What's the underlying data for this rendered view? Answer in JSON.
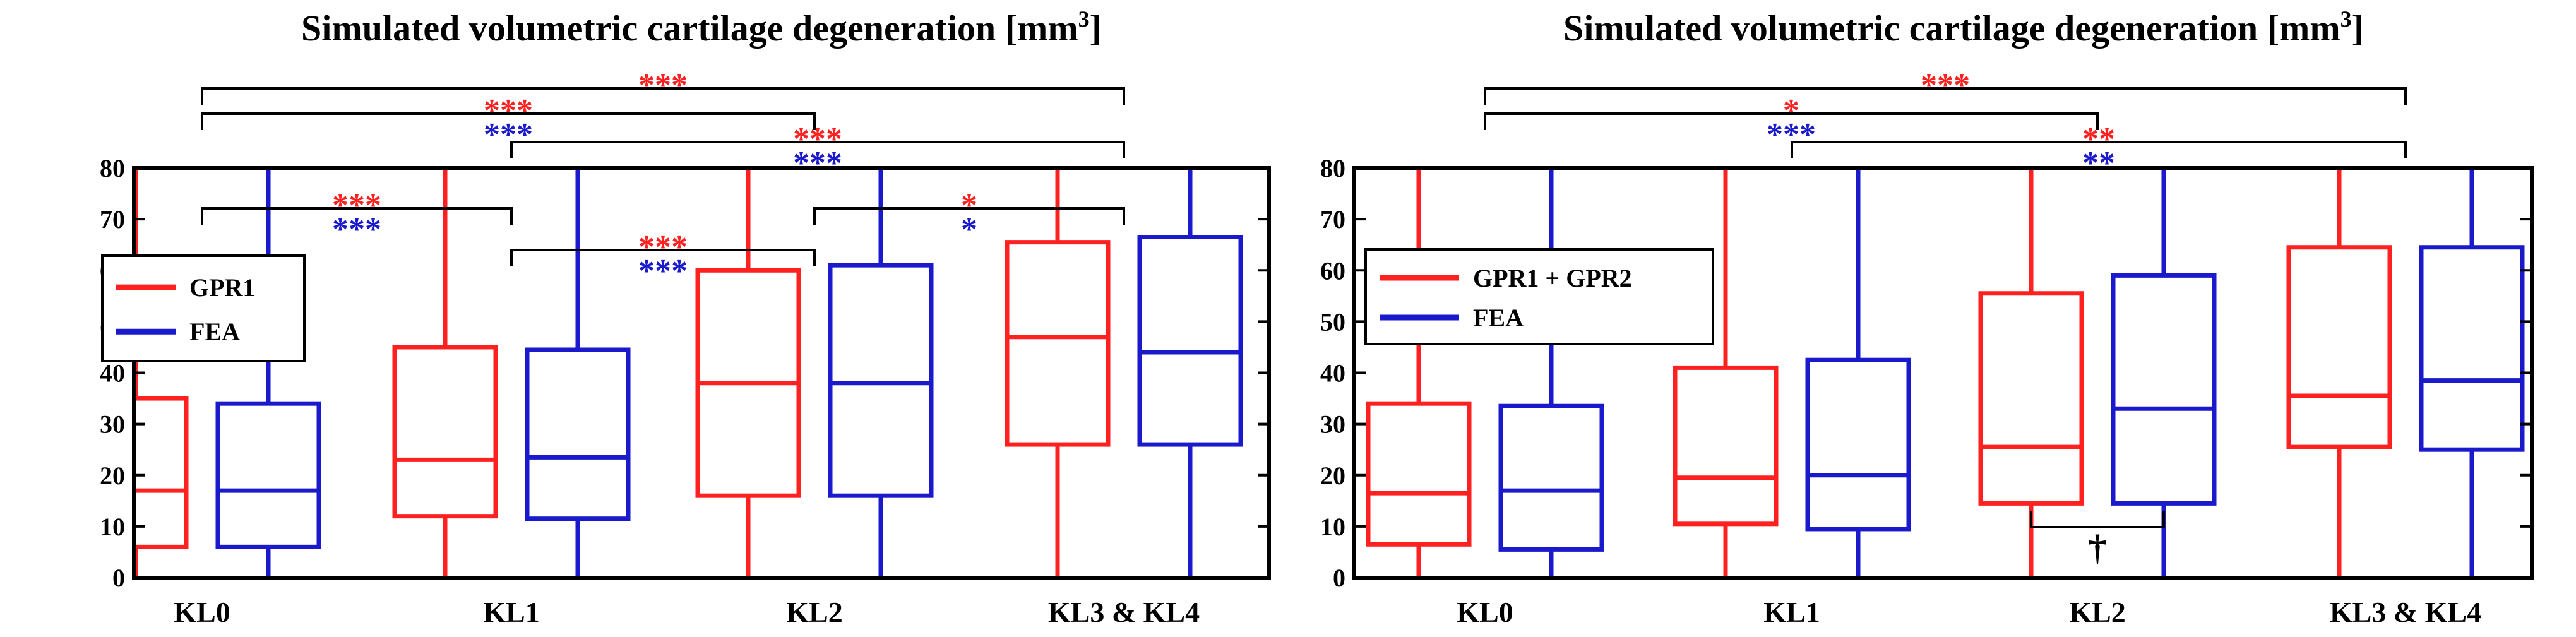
{
  "chart_data": [
    {
      "type": "box",
      "title": "Simulated volumetric cartilage degeneration [mm",
      "title_superscript": "3",
      "title_close": "]",
      "categories": [
        "KL0",
        "KL1",
        "KL2",
        "KL3 & KL4"
      ],
      "ylim": [
        0,
        80
      ],
      "yticks": [
        "0",
        "10",
        "20",
        "30",
        "40",
        "50",
        "60",
        "70",
        "80"
      ],
      "legend_position": "left-middle",
      "series": [
        {
          "name": "GPR1",
          "color": "#ff2020",
          "boxes": [
            {
              "q1": 6,
              "median": 17,
              "q3": 35
            },
            {
              "q1": 12,
              "median": 23,
              "q3": 45
            },
            {
              "q1": 16,
              "median": 38,
              "q3": 60
            },
            {
              "q1": 26,
              "median": 47,
              "q3": 65.5
            }
          ]
        },
        {
          "name": "FEA",
          "color": "#1a1acc",
          "boxes": [
            {
              "q1": 6,
              "median": 17,
              "q3": 34
            },
            {
              "q1": 11.5,
              "median": 23.5,
              "q3": 44.5
            },
            {
              "q1": 16,
              "median": 38,
              "q3": 61
            },
            {
              "q1": 26,
              "median": 44,
              "q3": 66.5
            }
          ]
        }
      ],
      "significance": [
        {
          "from": 0,
          "to": 3,
          "red": "***",
          "blue": ""
        },
        {
          "from": 0,
          "to": 2,
          "red": "***",
          "blue": "***"
        },
        {
          "from": 1,
          "to": 3,
          "red": "***",
          "blue": "***"
        },
        {
          "from": 0,
          "to": 1,
          "red": "***",
          "blue": "***"
        },
        {
          "from": 1,
          "to": 2,
          "red": "***",
          "blue": "***"
        },
        {
          "from": 2,
          "to": 3,
          "red": "*",
          "blue": "*"
        }
      ]
    },
    {
      "type": "box",
      "title": "Simulated volumetric cartilage degeneration [mm",
      "title_superscript": "3",
      "title_close": "]",
      "categories": [
        "KL0",
        "KL1",
        "KL2",
        "KL3 & KL4"
      ],
      "ylim": [
        0,
        80
      ],
      "yticks": [
        "0",
        "10",
        "20",
        "30",
        "40",
        "50",
        "60",
        "70",
        "80"
      ],
      "legend_position": "top-left",
      "series": [
        {
          "name": "GPR1 + GPR2",
          "color": "#ff2020",
          "boxes": [
            {
              "q1": 6.5,
              "median": 16.5,
              "q3": 34
            },
            {
              "q1": 10.5,
              "median": 19.5,
              "q3": 41
            },
            {
              "q1": 14.5,
              "median": 25.5,
              "q3": 55.5
            },
            {
              "q1": 25.5,
              "median": 35.5,
              "q3": 64.5
            }
          ]
        },
        {
          "name": "FEA",
          "color": "#1a1acc",
          "boxes": [
            {
              "q1": 5.5,
              "median": 17,
              "q3": 33.5
            },
            {
              "q1": 9.5,
              "median": 20,
              "q3": 42.5
            },
            {
              "q1": 14.5,
              "median": 33,
              "q3": 59
            },
            {
              "q1": 25,
              "median": 38.5,
              "q3": 64.5
            }
          ]
        }
      ],
      "significance": [
        {
          "from": 0,
          "to": 3,
          "red": "***",
          "blue": ""
        },
        {
          "from": 0,
          "to": 2,
          "red": "*",
          "blue": "***"
        },
        {
          "from": 1,
          "to": 3,
          "red": "**",
          "blue": "**"
        }
      ],
      "dagger_annotation": "†"
    }
  ]
}
